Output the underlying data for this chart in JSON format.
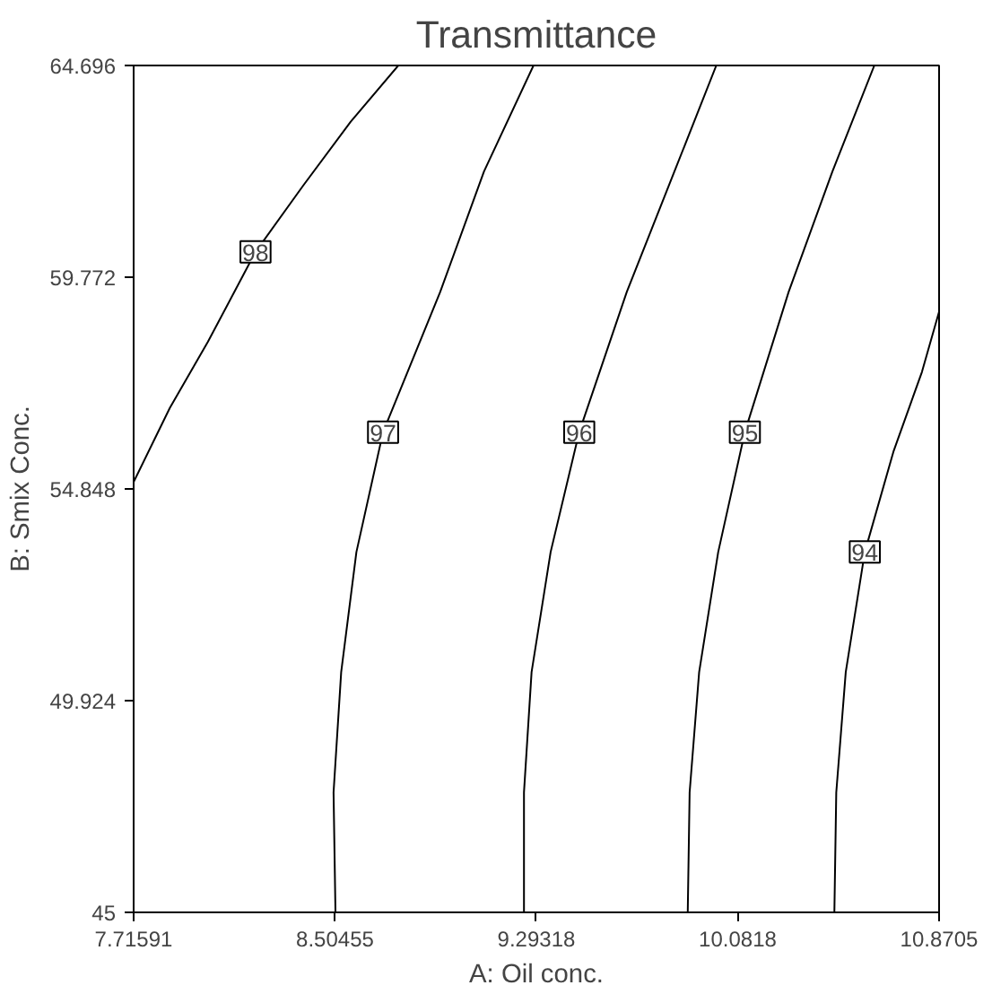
{
  "chart_data": {
    "type": "line",
    "title": "Transmittance",
    "xlabel": "A: Oil conc.",
    "ylabel": "B: Smix Conc.",
    "xlim": [
      7.71591,
      10.8705
    ],
    "ylim": [
      45,
      64.696
    ],
    "xticks": [
      7.71591,
      8.50455,
      9.29318,
      10.0818,
      10.8705
    ],
    "yticks": [
      45,
      49.924,
      54.848,
      59.772,
      64.696
    ],
    "grid": false,
    "marker": "none",
    "line_style": "solid",
    "series": [
      {
        "name": "98",
        "color": "#000000",
        "x": [
          7.71591,
          7.8576,
          8.0067,
          8.1932,
          8.3796,
          8.5661,
          8.7525
        ],
        "values": [
          55.01,
          56.73,
          58.27,
          60.36,
          61.9,
          63.39,
          64.696
        ]
      },
      {
        "name": "97",
        "color": "#000000",
        "x": [
          8.5064,
          8.4989,
          8.5288,
          8.5884,
          8.6928,
          8.9166,
          9.0881,
          9.282
        ],
        "values": [
          45,
          47.79,
          50.59,
          53.38,
          56.17,
          59.43,
          62.23,
          64.696
        ]
      },
      {
        "name": "96",
        "color": "#000000",
        "x": [
          9.2447,
          9.2447,
          9.2745,
          9.3491,
          9.461,
          9.6474,
          9.8339,
          9.9979
        ],
        "values": [
          45,
          47.79,
          50.59,
          53.38,
          56.17,
          59.43,
          62.23,
          64.696
        ]
      },
      {
        "name": "95",
        "color": "#000000",
        "x": [
          9.8861,
          9.8935,
          9.9308,
          10.0054,
          10.1098,
          10.2813,
          10.4528,
          10.6169
        ],
        "values": [
          45,
          47.79,
          50.59,
          53.38,
          56.17,
          59.43,
          62.23,
          64.696
        ]
      },
      {
        "name": "94",
        "color": "#000000",
        "x": [
          10.4604,
          10.4678,
          10.505,
          10.5796,
          10.6915,
          10.8034,
          10.8705
        ],
        "values": [
          45,
          47.79,
          50.59,
          53.38,
          55.71,
          57.57,
          58.97
        ]
      }
    ]
  }
}
